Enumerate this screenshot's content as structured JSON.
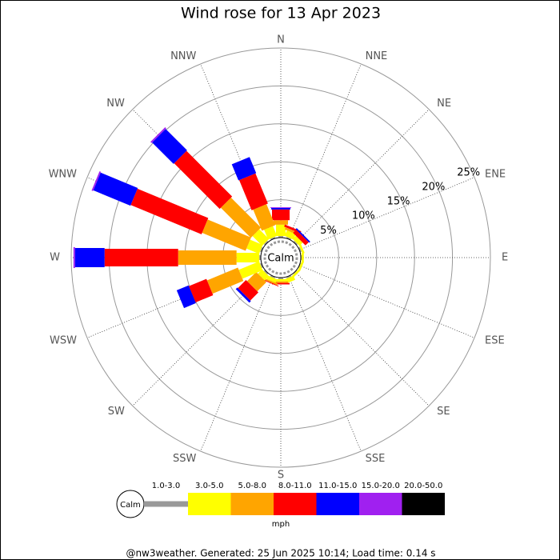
{
  "chart_data": {
    "type": "windrose",
    "title": "Wind rose for 13 Apr 2023",
    "categories": [
      "N",
      "NNE",
      "NE",
      "ENE",
      "E",
      "ESE",
      "SE",
      "SSE",
      "S",
      "SSW",
      "SW",
      "WSW",
      "W",
      "WNW",
      "NW",
      "NNW"
    ],
    "center_label": "Calm",
    "rlim": [
      0,
      25
    ],
    "rticks": [
      {
        "value": 5,
        "label": "5%"
      },
      {
        "value": 10,
        "label": "10%"
      },
      {
        "value": 15,
        "label": "15%"
      },
      {
        "value": 20,
        "label": "20%"
      },
      {
        "value": 25,
        "label": "25%"
      }
    ],
    "series": [
      {
        "name": "1.0-3.0",
        "color": "#999999",
        "values": [
          0.2,
          0.2,
          0.2,
          0.2,
          0.1,
          0.1,
          0.1,
          0.2,
          0.2,
          0.2,
          0.2,
          0.2,
          0.2,
          0.2,
          0.2,
          0.2
        ]
      },
      {
        "name": "3.0-5.0",
        "color": "#ffff00",
        "values": [
          1.5,
          0.8,
          0.6,
          0.3,
          0.3,
          0.3,
          0.3,
          0.6,
          0.3,
          0.5,
          0.8,
          2.9,
          3.0,
          1.8,
          1.8,
          1.4
        ]
      },
      {
        "name": "5.0-8.0",
        "color": "#ffa500",
        "values": [
          0.6,
          0.3,
          0,
          0,
          0,
          0,
          0,
          0,
          0.2,
          0.2,
          1.7,
          4.4,
          7.7,
          6.2,
          5.6,
          3.0
        ]
      },
      {
        "name": "8.0-11.0",
        "color": "#ff0000",
        "values": [
          1.4,
          0.3,
          0.6,
          0,
          0,
          0,
          0,
          0,
          0.2,
          0.1,
          1.5,
          2.5,
          9.7,
          10.1,
          8.5,
          4.3
        ]
      },
      {
        "name": "11.0-15.0",
        "color": "#0000ff",
        "values": [
          0.2,
          0,
          0.2,
          0,
          0,
          0,
          0,
          0,
          0,
          0,
          0.3,
          1.7,
          3.9,
          5.3,
          4.0,
          2.3
        ]
      },
      {
        "name": "15.0-20.0",
        "color": "#a020f0",
        "values": [
          0.1,
          0,
          0,
          0,
          0,
          0,
          0,
          0,
          0,
          0,
          0,
          0,
          0.2,
          0.2,
          0.2,
          0
        ]
      },
      {
        "name": "20.0-50.0",
        "color": "#000000",
        "values": [
          0,
          0,
          0,
          0,
          0,
          0,
          0,
          0,
          0,
          0,
          0,
          0,
          0,
          0,
          0,
          0
        ]
      }
    ],
    "legend_unit": "mph",
    "footer": "@nw3weather. Generated: 25 Jun 2025 10:14; Load time: 0.14 s"
  }
}
